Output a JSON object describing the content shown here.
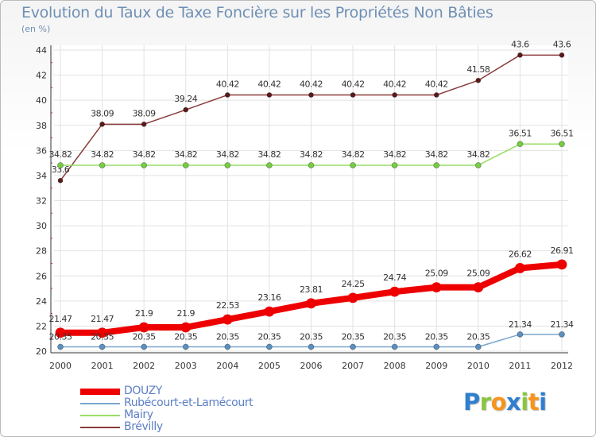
{
  "chart_data": {
    "type": "line",
    "title": "Evolution du Taux de Taxe Foncière sur les Propriétés Non Bâties",
    "unit_label": "(en %)",
    "xlabel": "",
    "ylabel": "(en %)",
    "ylim": [
      20,
      44
    ],
    "y_ticks": [
      20,
      22,
      24,
      26,
      28,
      30,
      32,
      34,
      36,
      38,
      40,
      42,
      44
    ],
    "x": [
      "2000",
      "2001",
      "2002",
      "2003",
      "2004",
      "2005",
      "2006",
      "2007",
      "2008",
      "2009",
      "2010",
      "2011",
      "2012"
    ],
    "grid": true,
    "legend_position": "bottom-left",
    "series": [
      {
        "name": "Brévilly",
        "color": "#8b3a3a",
        "marker_color": "#5c1a1a",
        "values": [
          33.6,
          38.09,
          38.09,
          39.24,
          40.42,
          40.42,
          40.42,
          40.42,
          40.42,
          40.42,
          41.58,
          43.6,
          43.6
        ],
        "labels": [
          "33.6",
          "38.09",
          "38.09",
          "39.24",
          "40.42",
          "40.42",
          "40.42",
          "40.42",
          "40.42",
          "40.42",
          "41.58",
          "43.6",
          "43.6"
        ]
      },
      {
        "name": "Mairy",
        "color": "#99dd66",
        "marker_color": "#77cc44",
        "values": [
          34.82,
          34.82,
          34.82,
          34.82,
          34.82,
          34.82,
          34.82,
          34.82,
          34.82,
          34.82,
          34.82,
          36.51,
          36.51
        ],
        "labels": [
          "34.82",
          "34.82",
          "34.82",
          "34.82",
          "34.82",
          "34.82",
          "34.82",
          "34.82",
          "34.82",
          "34.82",
          "34.82",
          "36.51",
          "36.51"
        ]
      },
      {
        "name": "DOUZY",
        "color": "#ee0000",
        "marker_color": "#ee0000",
        "values": [
          21.47,
          21.47,
          21.9,
          21.9,
          22.53,
          23.16,
          23.81,
          24.25,
          24.74,
          25.09,
          25.09,
          26.62,
          26.91
        ],
        "labels": [
          "21.47",
          "21.47",
          "21.9",
          "21.9",
          "22.53",
          "23.16",
          "23.81",
          "24.25",
          "24.74",
          "25.09",
          "25.09",
          "26.62",
          "26.91"
        ]
      },
      {
        "name": "Rubécourt-et-Lamécourt",
        "color": "#7aa6cc",
        "marker_color": "#5b8fbf",
        "values": [
          20.35,
          20.35,
          20.35,
          20.35,
          20.35,
          20.35,
          20.35,
          20.35,
          20.35,
          20.35,
          20.35,
          21.34,
          21.34
        ],
        "labels": [
          "20.35",
          "20.35",
          "20.35",
          "20.35",
          "20.35",
          "20.35",
          "20.35",
          "20.35",
          "20.35",
          "20.35",
          "20.35",
          "21.34",
          "21.34"
        ]
      }
    ],
    "legend_order": [
      "DOUZY",
      "Rubécourt-et-Lamécourt",
      "Mairy",
      "Brévilly"
    ]
  },
  "logo": {
    "letters": [
      "P",
      "r",
      "o",
      "x",
      "i",
      "t",
      "i"
    ],
    "colors": [
      "#2e7fd0",
      "#8bc53f",
      "#f7941d",
      "#2e7fd0",
      "#8bc53f",
      "#f7941d",
      "#2e7fd0"
    ]
  }
}
